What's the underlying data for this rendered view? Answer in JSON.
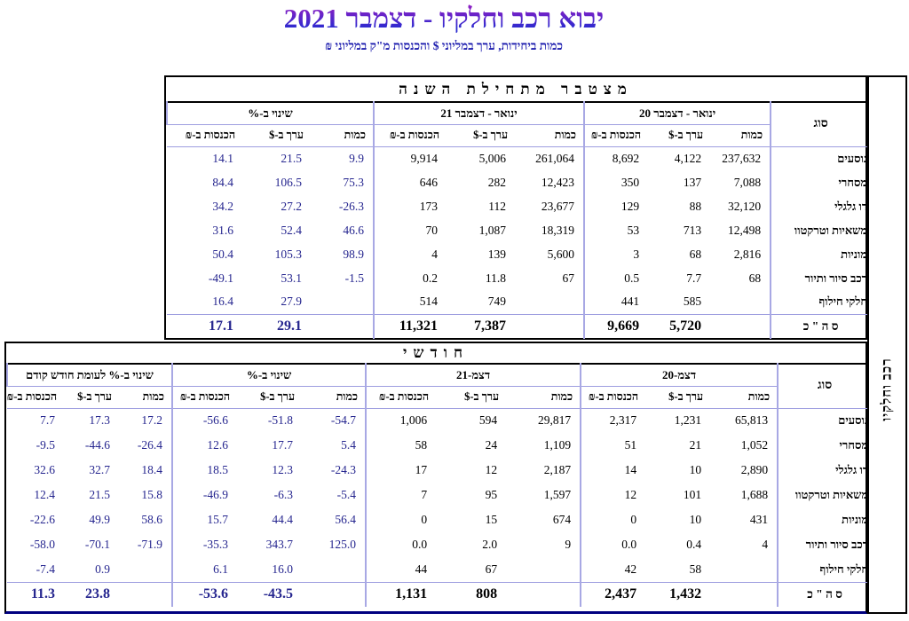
{
  "page": {
    "title": "יבוא רכב וחלקיו - דצמבר 2021",
    "subtitle": "כמות ביחידות, ערך במליוני $ והכנסות מ\"ק במליוני ₪",
    "side_label": "רכב וחלקיו"
  },
  "columns": {
    "qty": "כמות",
    "val": "ערך ב-$",
    "rev": "הכנסות ב-₪"
  },
  "annual": {
    "title": "מצטבר מתחילת השנה",
    "type_header": "סוג",
    "groups": {
      "y20": "ינואר - דצמבר 20",
      "y21": "ינואר - דצמבר 21",
      "pct": "שינוי ב-%"
    },
    "rows": [
      {
        "type": "נוסעים",
        "pct": [
          "14.1",
          "21.5",
          "9.9"
        ],
        "y21": [
          "9,914",
          "5,006",
          "261,064"
        ],
        "y20": [
          "8,692",
          "4,122",
          "237,632"
        ]
      },
      {
        "type": "מסחרי",
        "pct": [
          "84.4",
          "106.5",
          "75.3"
        ],
        "y21": [
          "646",
          "282",
          "12,423"
        ],
        "y20": [
          "350",
          "137",
          "7,088"
        ]
      },
      {
        "type": "דו גלגלי",
        "pct": [
          "34.2",
          "27.2",
          "-26.3"
        ],
        "y21": [
          "173",
          "112",
          "23,677"
        ],
        "y20": [
          "129",
          "88",
          "32,120"
        ]
      },
      {
        "type": "משאיות וטרקטוו",
        "pct": [
          "31.6",
          "52.4",
          "46.6"
        ],
        "y21": [
          "70",
          "1,087",
          "18,319"
        ],
        "y20": [
          "53",
          "713",
          "12,498"
        ]
      },
      {
        "type": "מוניות",
        "pct": [
          "50.4",
          "105.3",
          "98.9"
        ],
        "y21": [
          "4",
          "139",
          "5,600"
        ],
        "y20": [
          "3",
          "68",
          "2,816"
        ]
      },
      {
        "type": "רכב סיור ותיור",
        "pct": [
          "-49.1",
          "53.1",
          "-1.5"
        ],
        "y21": [
          "0.2",
          "11.8",
          "67"
        ],
        "y20": [
          "0.5",
          "7.7",
          "68"
        ]
      },
      {
        "type": "חלקי חילוף",
        "pct": [
          "16.4",
          "27.9",
          ""
        ],
        "y21": [
          "514",
          "749",
          ""
        ],
        "y20": [
          "441",
          "585",
          ""
        ]
      }
    ],
    "total": {
      "type": "ס ה \" כ",
      "pct": [
        "17.1",
        "29.1",
        ""
      ],
      "y21": [
        "11,321",
        "7,387",
        ""
      ],
      "y20": [
        "9,669",
        "5,720",
        ""
      ]
    }
  },
  "monthly": {
    "title": "חודשי",
    "type_header": "סוג",
    "groups": {
      "m20": "דצמ-20",
      "m21": "דצמ-21",
      "pct": "שינוי ב-%",
      "prev": "שינוי ב-% לעומת חודש קודם"
    },
    "rows": [
      {
        "type": "נוסעים",
        "prev": [
          "7.7",
          "17.3",
          "17.2"
        ],
        "pct": [
          "-56.6",
          "-51.8",
          "-54.7"
        ],
        "m21": [
          "1,006",
          "594",
          "29,817"
        ],
        "m20": [
          "2,317",
          "1,231",
          "65,813"
        ]
      },
      {
        "type": "מסחרי",
        "prev": [
          "-9.5",
          "-44.6",
          "-26.4"
        ],
        "pct": [
          "12.6",
          "17.7",
          "5.4"
        ],
        "m21": [
          "58",
          "24",
          "1,109"
        ],
        "m20": [
          "51",
          "21",
          "1,052"
        ]
      },
      {
        "type": "דו גלגלי",
        "prev": [
          "32.6",
          "32.7",
          "18.4"
        ],
        "pct": [
          "18.5",
          "12.3",
          "-24.3"
        ],
        "m21": [
          "17",
          "12",
          "2,187"
        ],
        "m20": [
          "14",
          "10",
          "2,890"
        ]
      },
      {
        "type": "משאיות וטרקטוו",
        "prev": [
          "12.4",
          "21.5",
          "15.8"
        ],
        "pct": [
          "-46.9",
          "-6.3",
          "-5.4"
        ],
        "m21": [
          "7",
          "95",
          "1,597"
        ],
        "m20": [
          "12",
          "101",
          "1,688"
        ]
      },
      {
        "type": "מוניות",
        "prev": [
          "-22.6",
          "49.9",
          "58.6"
        ],
        "pct": [
          "15.7",
          "44.4",
          "56.4"
        ],
        "m21": [
          "0",
          "15",
          "674"
        ],
        "m20": [
          "0",
          "10",
          "431"
        ]
      },
      {
        "type": "רכב סיור ותיור",
        "prev": [
          "-58.0",
          "-70.1",
          "-71.9"
        ],
        "pct": [
          "-35.3",
          "343.7",
          "125.0"
        ],
        "m21": [
          "0.0",
          "2.0",
          "9"
        ],
        "m20": [
          "0.0",
          "0.4",
          "4"
        ]
      },
      {
        "type": "חלקי חילוף",
        "prev": [
          "-7.4",
          "0.9",
          ""
        ],
        "pct": [
          "6.1",
          "16.0",
          ""
        ],
        "m21": [
          "44",
          "67",
          ""
        ],
        "m20": [
          "42",
          "58",
          ""
        ]
      }
    ],
    "total": {
      "type": "ס ה \" כ",
      "prev": [
        "11.3",
        "23.8",
        ""
      ],
      "pct": [
        "-53.6",
        "-43.5",
        ""
      ],
      "m21": [
        "1,131",
        "808",
        ""
      ],
      "m20": [
        "2,437",
        "1,432",
        ""
      ]
    }
  }
}
